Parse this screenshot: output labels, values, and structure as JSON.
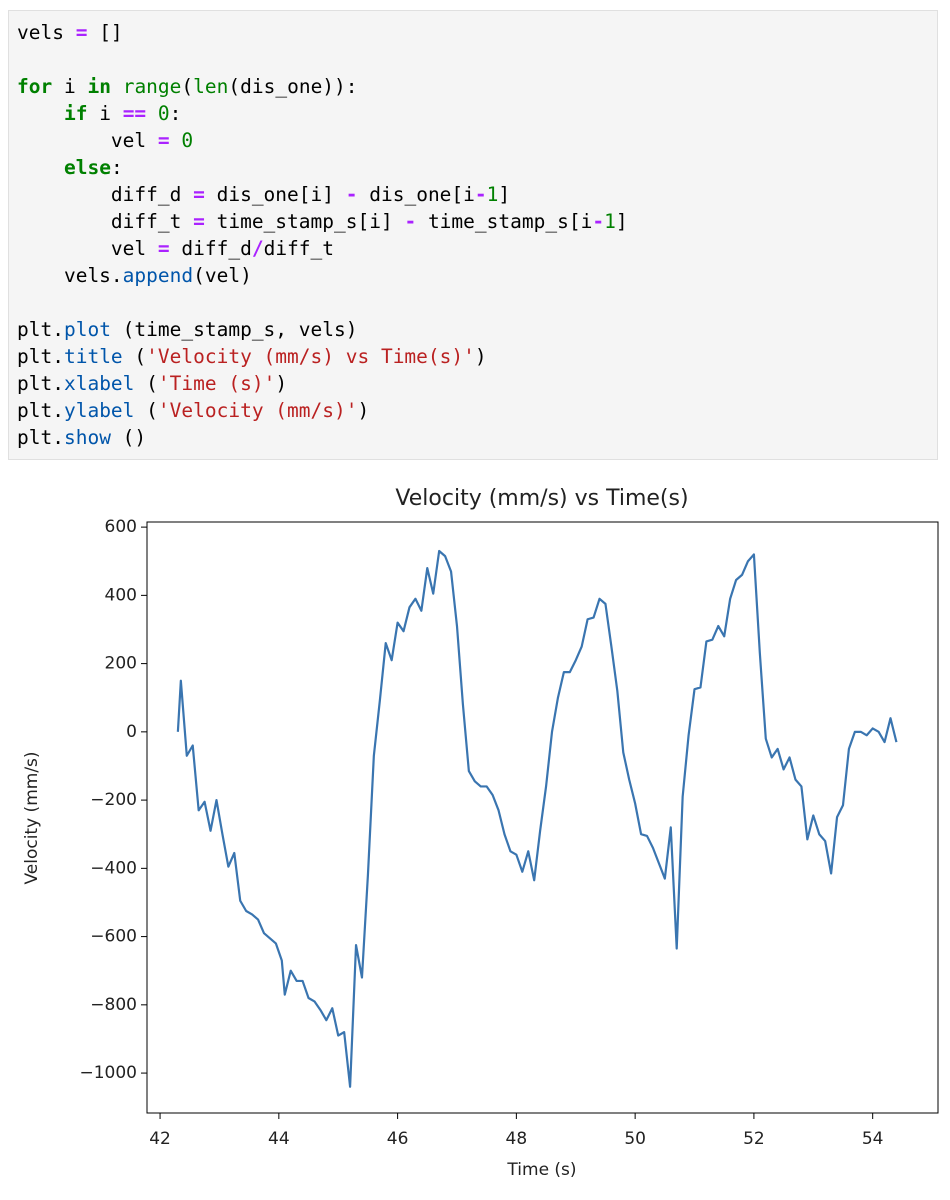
{
  "code": {
    "lines": [
      [
        {
          "text": "vels "
        },
        {
          "text": "=",
          "color": "#aa22ff",
          "bold": true
        },
        {
          "text": " []"
        }
      ],
      [],
      [
        {
          "text": "for",
          "color": "#008000",
          "bold": true
        },
        {
          "text": " i "
        },
        {
          "text": "in",
          "color": "#008000",
          "bold": true
        },
        {
          "text": " "
        },
        {
          "text": "range",
          "color": "#008000"
        },
        {
          "text": "("
        },
        {
          "text": "len",
          "color": "#008000"
        },
        {
          "text": "(dis_one)):"
        }
      ],
      [
        {
          "text": "    "
        },
        {
          "text": "if",
          "color": "#008000",
          "bold": true
        },
        {
          "text": " i "
        },
        {
          "text": "==",
          "color": "#aa22ff",
          "bold": true
        },
        {
          "text": " "
        },
        {
          "text": "0",
          "color": "#008000"
        },
        {
          "text": ":"
        }
      ],
      [
        {
          "text": "        vel "
        },
        {
          "text": "=",
          "color": "#aa22ff",
          "bold": true
        },
        {
          "text": " "
        },
        {
          "text": "0",
          "color": "#008000"
        }
      ],
      [
        {
          "text": "    "
        },
        {
          "text": "else",
          "color": "#008000",
          "bold": true
        },
        {
          "text": ":"
        }
      ],
      [
        {
          "text": "        diff_d "
        },
        {
          "text": "=",
          "color": "#aa22ff",
          "bold": true
        },
        {
          "text": " dis_one[i] "
        },
        {
          "text": "-",
          "color": "#aa22ff",
          "bold": true
        },
        {
          "text": " dis_one[i"
        },
        {
          "text": "-",
          "color": "#aa22ff",
          "bold": true
        },
        {
          "text": "1",
          "color": "#008000"
        },
        {
          "text": "]"
        }
      ],
      [
        {
          "text": "        diff_t "
        },
        {
          "text": "=",
          "color": "#aa22ff",
          "bold": true
        },
        {
          "text": " time_stamp_s[i] "
        },
        {
          "text": "-",
          "color": "#aa22ff",
          "bold": true
        },
        {
          "text": " time_stamp_s[i"
        },
        {
          "text": "-",
          "color": "#aa22ff",
          "bold": true
        },
        {
          "text": "1",
          "color": "#008000"
        },
        {
          "text": "]"
        }
      ],
      [
        {
          "text": "        vel "
        },
        {
          "text": "=",
          "color": "#aa22ff",
          "bold": true
        },
        {
          "text": " diff_d"
        },
        {
          "text": "/",
          "color": "#aa22ff",
          "bold": true
        },
        {
          "text": "diff_t"
        }
      ],
      [
        {
          "text": "    vels."
        },
        {
          "text": "append",
          "color": "#0055aa"
        },
        {
          "text": "(vel)"
        }
      ],
      [],
      [
        {
          "text": "plt."
        },
        {
          "text": "plot",
          "color": "#0055aa"
        },
        {
          "text": " (time_stamp_s, vels)"
        }
      ],
      [
        {
          "text": "plt."
        },
        {
          "text": "title",
          "color": "#0055aa"
        },
        {
          "text": " ("
        },
        {
          "text": "'Velocity (mm/s) vs Time(s)'",
          "color": "#ba2121"
        },
        {
          "text": ")"
        }
      ],
      [
        {
          "text": "plt."
        },
        {
          "text": "xlabel",
          "color": "#0055aa"
        },
        {
          "text": " ("
        },
        {
          "text": "'Time (s)'",
          "color": "#ba2121"
        },
        {
          "text": ")"
        }
      ],
      [
        {
          "text": "plt."
        },
        {
          "text": "ylabel",
          "color": "#0055aa"
        },
        {
          "text": " ("
        },
        {
          "text": "'Velocity (mm/s)'",
          "color": "#ba2121"
        },
        {
          "text": ")"
        }
      ],
      [
        {
          "text": "plt."
        },
        {
          "text": "show",
          "color": "#0055aa"
        },
        {
          "text": " ()"
        }
      ]
    ]
  },
  "chart_data": {
    "type": "line",
    "title": "Velocity (mm/s) vs Time(s)",
    "x_label": "Time (s)",
    "y_label": "Velocity (mm/s)",
    "x": [
      42.3,
      42.35,
      42.45,
      42.55,
      42.65,
      42.75,
      42.85,
      42.95,
      43.05,
      43.15,
      43.25,
      43.35,
      43.45,
      43.55,
      43.65,
      43.75,
      43.85,
      43.95,
      44.05,
      44.1,
      44.2,
      44.3,
      44.4,
      44.5,
      44.6,
      44.7,
      44.8,
      44.9,
      45.0,
      45.1,
      45.2,
      45.3,
      45.4,
      45.5,
      45.6,
      45.7,
      45.8,
      45.9,
      46.0,
      46.1,
      46.2,
      46.3,
      46.4,
      46.5,
      46.6,
      46.7,
      46.8,
      46.9,
      47.0,
      47.1,
      47.2,
      47.3,
      47.4,
      47.5,
      47.6,
      47.7,
      47.8,
      47.9,
      48.0,
      48.1,
      48.2,
      48.3,
      48.4,
      48.5,
      48.6,
      48.7,
      48.8,
      48.9,
      49.0,
      49.1,
      49.2,
      49.3,
      49.4,
      49.5,
      49.6,
      49.7,
      49.8,
      49.9,
      50.0,
      50.1,
      50.2,
      50.3,
      50.4,
      50.5,
      50.6,
      50.7,
      50.8,
      50.9,
      51.0,
      51.1,
      51.2,
      51.3,
      51.4,
      51.5,
      51.6,
      51.7,
      51.8,
      51.9,
      52.0,
      52.1,
      52.2,
      52.3,
      52.4,
      52.5,
      52.6,
      52.7,
      52.8,
      52.9,
      53.0,
      53.1,
      53.2,
      53.3,
      53.4,
      53.5,
      53.6,
      53.7,
      53.8,
      53.9,
      54.0,
      54.1,
      54.2,
      54.3,
      54.4
    ],
    "series": [
      {
        "color": "#3a75b0",
        "values": [
          0,
          150,
          -70,
          -40,
          -230,
          -205,
          -290,
          -200,
          -300,
          -395,
          -355,
          -495,
          -525,
          -535,
          -550,
          -590,
          -605,
          -620,
          -670,
          -770,
          -700,
          -730,
          -730,
          -780,
          -790,
          -815,
          -845,
          -810,
          -890,
          -880,
          -1040,
          -625,
          -720,
          -420,
          -70,
          90,
          260,
          210,
          320,
          295,
          365,
          390,
          355,
          480,
          405,
          530,
          515,
          470,
          310,
          80,
          -115,
          -145,
          -160,
          -160,
          -185,
          -230,
          -300,
          -350,
          -360,
          -410,
          -350,
          -435,
          -290,
          -160,
          0,
          100,
          175,
          175,
          210,
          250,
          330,
          335,
          390,
          375,
          250,
          120,
          -60,
          -140,
          -210,
          -300,
          -305,
          -340,
          -385,
          -430,
          -280,
          -635,
          -190,
          -10,
          125,
          130,
          265,
          270,
          310,
          280,
          390,
          445,
          460,
          500,
          520,
          230,
          -20,
          -75,
          -50,
          -110,
          -75,
          -140,
          -160,
          -315,
          -245,
          -300,
          -320,
          -415,
          -250,
          -215,
          -50,
          0,
          0,
          -10,
          10,
          0,
          -30,
          40,
          -30
        ]
      }
    ],
    "xlim": [
      41.78,
      55.1
    ],
    "ylim": [
      -1117,
      615
    ],
    "xticks": [
      42,
      44,
      46,
      48,
      50,
      52,
      54
    ],
    "yticks": [
      {
        "value": -1000,
        "label": "−1000"
      },
      {
        "value": -800,
        "label": "−800"
      },
      {
        "value": -600,
        "label": "−600"
      },
      {
        "value": -400,
        "label": "−400"
      },
      {
        "value": -200,
        "label": "−200"
      },
      0,
      200,
      400,
      600
    ]
  }
}
